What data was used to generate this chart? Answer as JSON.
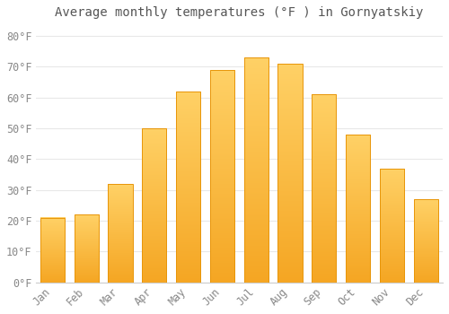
{
  "title": "Average monthly temperatures (°F ) in Gornyatskiy",
  "months": [
    "Jan",
    "Feb",
    "Mar",
    "Apr",
    "May",
    "Jun",
    "Jul",
    "Aug",
    "Sep",
    "Oct",
    "Nov",
    "Dec"
  ],
  "values": [
    21,
    22,
    32,
    50,
    62,
    69,
    73,
    71,
    61,
    48,
    37,
    27
  ],
  "bar_color_bottom": "#F5A623",
  "bar_color_top": "#FFD166",
  "bar_edge_color": "#E8960A",
  "background_color": "#FFFFFF",
  "plot_bg_color": "#FFFFFF",
  "grid_color": "#E8E8E8",
  "ylim": [
    0,
    84
  ],
  "yticks": [
    0,
    10,
    20,
    30,
    40,
    50,
    60,
    70,
    80
  ],
  "title_fontsize": 10,
  "tick_fontsize": 8.5,
  "tick_color": "#888888",
  "title_color": "#555555",
  "bar_width": 0.72
}
